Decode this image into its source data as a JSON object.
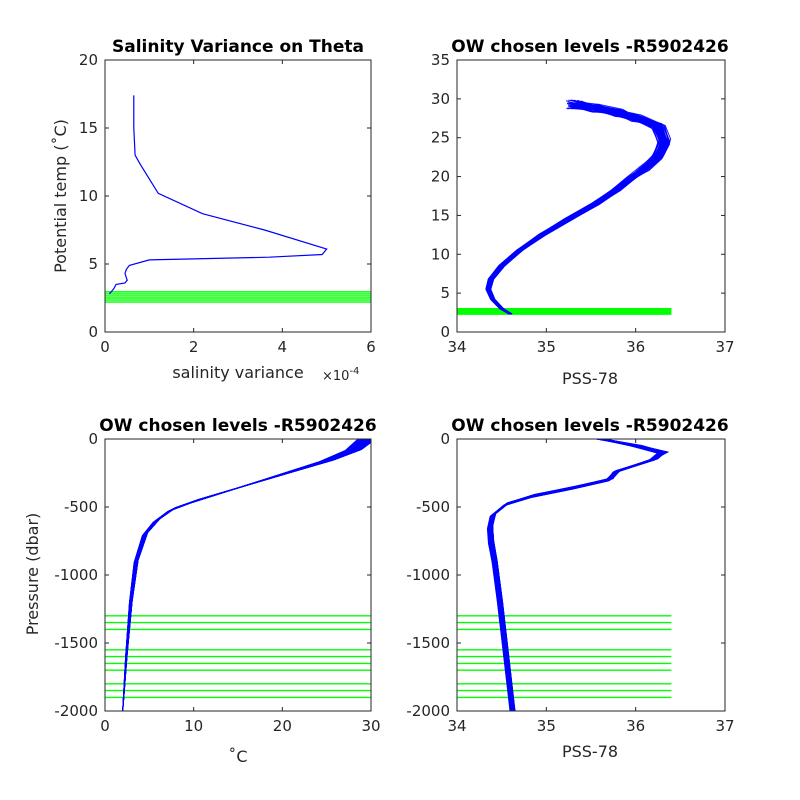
{
  "figure": {
    "background": "#ffffff",
    "line_color": "#0000ff",
    "level_color": "#00ff00"
  },
  "chart_data": [
    {
      "type": "line",
      "title": "Salinity Variance on Theta",
      "xlabel": "salinity variance",
      "x_exponent": "×10",
      "x_exponent_power": "-4",
      "ylabel": "Potential temp (˚C)",
      "xlim": [
        0,
        6
      ],
      "ylim": [
        0,
        20
      ],
      "xticks": [
        0,
        2,
        4,
        6
      ],
      "xtick_labels": [
        "0",
        "2",
        "4",
        "6"
      ],
      "yticks": [
        0,
        5,
        10,
        15,
        20
      ],
      "ytick_labels": [
        "0",
        "5",
        "10",
        "15",
        "20"
      ],
      "series": [
        {
          "color": "#0000ff",
          "x": [
            0.65,
            0.65,
            0.68,
            0.8,
            1.2,
            2.2,
            3.6,
            5.0,
            4.9,
            3.7,
            1.0,
            0.55,
            0.48,
            0.45,
            0.5,
            0.45,
            0.25,
            0.2,
            0.15,
            0.1
          ],
          "y": [
            17.4,
            15.0,
            13.0,
            12.3,
            10.2,
            8.7,
            7.5,
            6.1,
            5.7,
            5.5,
            5.3,
            4.9,
            4.6,
            4.3,
            3.8,
            3.6,
            3.5,
            3.2,
            3.0,
            2.8
          ]
        }
      ],
      "levels": {
        "color": "#00ff00",
        "y": [
          2.2,
          2.35,
          2.5,
          2.65,
          2.8,
          2.95
        ]
      }
    },
    {
      "type": "line",
      "title": "OW chosen levels -R5902426",
      "xlabel": "PSS-78",
      "xlim": [
        34,
        37
      ],
      "ylim": [
        0,
        35
      ],
      "xticks": [
        34,
        35,
        36,
        37
      ],
      "xtick_labels": [
        "34",
        "35",
        "36",
        "37"
      ],
      "yticks": [
        0,
        5,
        10,
        15,
        20,
        25,
        30,
        35
      ],
      "ytick_labels": [
        "0",
        "5",
        "10",
        "15",
        "20",
        "25",
        "30",
        "35"
      ],
      "profile": {
        "color": "#0000ff",
        "x": [
          34.6,
          34.5,
          34.4,
          34.35,
          34.38,
          34.5,
          34.7,
          34.95,
          35.25,
          35.55,
          35.78,
          35.95,
          36.1,
          36.25,
          36.32,
          36.25,
          36.0,
          35.8,
          35.55,
          35.3
        ],
        "y": [
          2.3,
          3.0,
          4.2,
          5.5,
          6.8,
          8.5,
          10.5,
          12.5,
          14.5,
          16.5,
          18.2,
          19.8,
          21.0,
          22.5,
          24.5,
          26.5,
          27.5,
          28.2,
          28.8,
          29.3
        ],
        "count": 55
      },
      "levels": {
        "color": "#00ff00",
        "y": [
          2.3,
          2.45,
          2.6,
          2.75,
          2.9,
          3.0
        ],
        "x_range": [
          34.0,
          36.4
        ]
      }
    },
    {
      "type": "line",
      "title": "OW chosen levels -R5902426",
      "xlabel": "˚C",
      "ylabel": "Pressure (dbar)",
      "xlim": [
        0,
        30
      ],
      "ylim": [
        -2000,
        0
      ],
      "xticks": [
        0,
        10,
        20,
        30
      ],
      "xtick_labels": [
        "0",
        "10",
        "20",
        "30"
      ],
      "yticks": [
        -2000,
        -1500,
        -1000,
        -500,
        0
      ],
      "ytick_labels": [
        "-2000",
        "-1500",
        "-1000",
        "-500",
        "0"
      ],
      "profile": {
        "color": "#0000ff",
        "x": [
          2.0,
          2.4,
          2.9,
          3.5,
          4.5,
          5.8,
          7.5,
          10.0,
          13.0,
          17.0,
          21.0,
          25.0,
          28.0,
          29.5
        ],
        "y": [
          -2000,
          -1600,
          -1200,
          -900,
          -700,
          -600,
          -520,
          -460,
          -400,
          -320,
          -240,
          -160,
          -80,
          0
        ],
        "count": 55
      },
      "levels": {
        "color": "#00ff00",
        "y": [
          -1300,
          -1350,
          -1400,
          -1550,
          -1600,
          -1650,
          -1700,
          -1800,
          -1850,
          -1900
        ],
        "x_range": [
          0,
          30
        ]
      }
    },
    {
      "type": "line",
      "title": "OW chosen levels -R5902426",
      "xlabel": "PSS-78",
      "xlim": [
        34,
        37
      ],
      "ylim": [
        -2000,
        0
      ],
      "xticks": [
        34,
        35,
        36,
        37
      ],
      "xtick_labels": [
        "34",
        "35",
        "36",
        "37"
      ],
      "yticks": [
        -2000,
        -1500,
        -1000,
        -500,
        0
      ],
      "ytick_labels": [
        "-2000",
        "-1500",
        "-1000",
        "-500",
        "0"
      ],
      "profile": {
        "color": "#0000ff",
        "x": [
          34.62,
          34.55,
          34.48,
          34.42,
          34.38,
          34.37,
          34.4,
          34.55,
          34.85,
          35.3,
          35.7,
          35.78,
          36.2,
          36.3,
          36.0,
          35.6
        ],
        "y": [
          -2000,
          -1600,
          -1200,
          -900,
          -760,
          -650,
          -560,
          -480,
          -420,
          -360,
          -300,
          -240,
          -150,
          -100,
          -50,
          0
        ],
        "count": 55
      },
      "levels": {
        "color": "#00ff00",
        "y": [
          -1300,
          -1350,
          -1400,
          -1550,
          -1600,
          -1650,
          -1700,
          -1800,
          -1850,
          -1900
        ],
        "x_range": [
          34.0,
          36.4
        ]
      }
    }
  ]
}
